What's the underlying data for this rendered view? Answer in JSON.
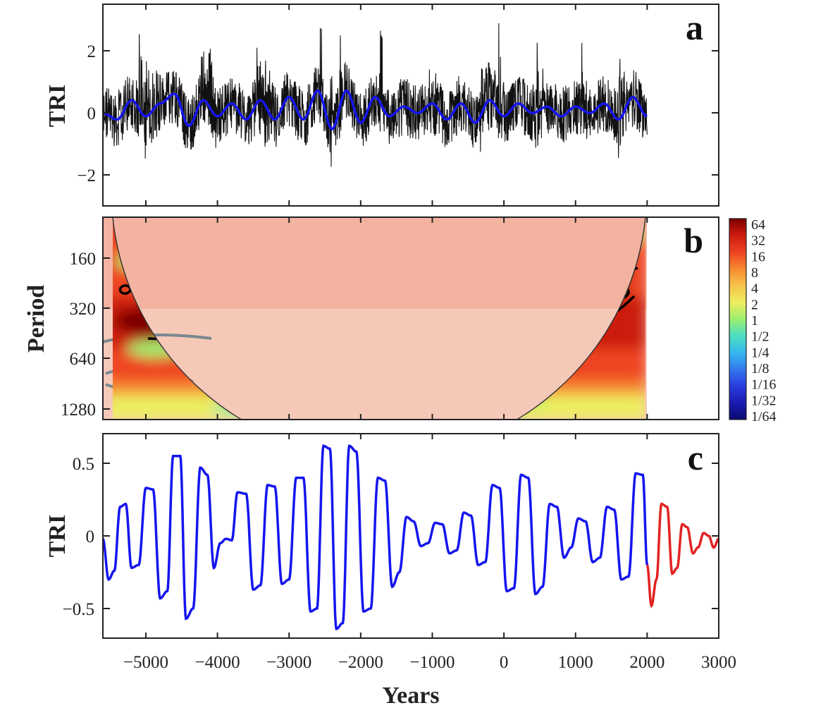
{
  "chart_data": [
    {
      "type": "line",
      "panel": "a",
      "ylabel": "TRI",
      "xlim": [
        -5600,
        3000
      ],
      "ylim": [
        -3,
        3.3
      ],
      "yticks": [
        -2,
        0,
        2
      ],
      "x_data_range": [
        -5600,
        2000
      ],
      "series": [
        {
          "style": "raw tree-ring index, thin black",
          "color": "#111111"
        },
        {
          "style": "filtered oscillation, thick blue",
          "color": "#1515ee",
          "x": [
            -5600,
            -5400,
            -5200,
            -5000,
            -4800,
            -4600,
            -4400,
            -4200,
            -4000,
            -3800,
            -3600,
            -3400,
            -3200,
            -3000,
            -2800,
            -2600,
            -2400,
            -2200,
            -2000,
            -1800,
            -1600,
            -1400,
            -1200,
            -1000,
            -800,
            -600,
            -400,
            -200,
            0,
            200,
            400,
            600,
            800,
            1000,
            1200,
            1400,
            1600,
            1800,
            2000
          ],
          "values": [
            -0.1,
            -0.3,
            0.3,
            -0.2,
            0.2,
            0.5,
            -0.5,
            0.3,
            -0.2,
            0.2,
            -0.3,
            0.3,
            -0.3,
            0.4,
            -0.3,
            0.6,
            -0.6,
            0.6,
            -0.4,
            0.4,
            -0.2,
            0.1,
            -0.1,
            0.2,
            -0.3,
            0.2,
            -0.4,
            0.3,
            -0.2,
            0.2,
            -0.1,
            0.1,
            -0.2,
            0.1,
            -0.1,
            0.2,
            -0.3,
            0.4,
            -0.2
          ]
        }
      ]
    },
    {
      "type": "heatmap",
      "panel": "b",
      "ylabel": "Period",
      "yticks": [
        160,
        320,
        640,
        1280
      ],
      "y_scale": "log2",
      "colorbar_labels": [
        "64",
        "32",
        "16",
        "8",
        "4",
        "2",
        "1",
        "1/2",
        "1/4",
        "1/8",
        "1/16",
        "1/32",
        "1/64"
      ],
      "colormap": [
        "#7a0000",
        "#cc1a10",
        "#ee4422",
        "#f68a30",
        "#f7c24a",
        "#ecee60",
        "#9cee6e",
        "#4ee0c0",
        "#35b6ee",
        "#3378ee",
        "#2a3ee0",
        "#1a1ab0",
        "#0a0a70"
      ],
      "cone_of_influence": true,
      "significance_contours": true
    },
    {
      "type": "line",
      "panel": "c",
      "xlabel": "Years",
      "ylabel": "TRI",
      "xlim": [
        -5600,
        3000
      ],
      "ylim": [
        -0.66,
        0.66
      ],
      "xticks": [
        -5000,
        -4000,
        -3000,
        -2000,
        -1000,
        0,
        1000,
        2000,
        3000
      ],
      "yticks": [
        -0.5,
        0,
        0.5
      ],
      "series": [
        {
          "style": "reconstructed oscillation, blue",
          "color": "#1515ee",
          "x": [
            -5600,
            -5520,
            -5440,
            -5360,
            -5280,
            -5200,
            -5100,
            -5000,
            -4900,
            -4800,
            -4700,
            -4620,
            -4520,
            -4440,
            -4340,
            -4240,
            -4140,
            -4050,
            -3960,
            -3880,
            -3800,
            -3720,
            -3600,
            -3500,
            -3400,
            -3300,
            -3200,
            -3100,
            -3000,
            -2900,
            -2800,
            -2700,
            -2610,
            -2520,
            -2430,
            -2340,
            -2250,
            -2160,
            -2060,
            -1960,
            -1860,
            -1760,
            -1660,
            -1560,
            -1460,
            -1360,
            -1260,
            -1160,
            -1060,
            -960,
            -860,
            -760,
            -660,
            -560,
            -460,
            -360,
            -260,
            -160,
            -60,
            40,
            140,
            240,
            340,
            440,
            540,
            640,
            740,
            840,
            940,
            1040,
            1140,
            1240,
            1340,
            1440,
            1540,
            1640,
            1740,
            1840,
            1940,
            2000
          ],
          "values": [
            -0.02,
            -0.3,
            -0.24,
            0.2,
            0.22,
            -0.22,
            -0.2,
            0.33,
            0.32,
            -0.43,
            -0.38,
            0.55,
            0.55,
            -0.57,
            -0.5,
            0.47,
            0.42,
            -0.22,
            -0.05,
            -0.02,
            -0.03,
            0.3,
            0.29,
            -0.37,
            -0.34,
            0.35,
            0.34,
            -0.33,
            -0.3,
            0.4,
            0.4,
            -0.52,
            -0.5,
            0.62,
            0.6,
            -0.64,
            -0.6,
            0.62,
            0.58,
            -0.52,
            -0.5,
            0.4,
            0.38,
            -0.35,
            -0.25,
            0.13,
            0.1,
            -0.07,
            -0.05,
            0.09,
            0.08,
            -0.12,
            -0.1,
            0.16,
            0.14,
            -0.2,
            -0.18,
            0.35,
            0.33,
            -0.38,
            -0.36,
            0.42,
            0.4,
            -0.4,
            -0.35,
            0.22,
            0.2,
            -0.15,
            -0.08,
            0.12,
            0.1,
            -0.18,
            -0.15,
            0.2,
            0.18,
            -0.3,
            -0.28,
            0.43,
            0.42,
            -0.2
          ]
        },
        {
          "style": "projection, red",
          "color": "#e22222",
          "x": [
            2000,
            2060,
            2130,
            2200,
            2280,
            2350,
            2420,
            2490,
            2560,
            2640,
            2710,
            2790,
            2860,
            2930,
            3000
          ],
          "values": [
            -0.2,
            -0.48,
            -0.3,
            0.22,
            0.2,
            -0.26,
            -0.22,
            0.08,
            0.06,
            -0.12,
            -0.08,
            0.02,
            0.0,
            -0.08,
            -0.02
          ]
        }
      ]
    }
  ],
  "panels": {
    "a": {
      "letter": "a",
      "ylabel": "TRI",
      "yticks": [
        "2",
        "0",
        "−2"
      ]
    },
    "b": {
      "letter": "b",
      "ylabel": "Period",
      "yticks": [
        "160",
        "320",
        "640",
        "1280"
      ]
    },
    "c": {
      "letter": "c",
      "ylabel": "TRI",
      "yticks": [
        "0.5",
        "0",
        "−0.5"
      ],
      "xlabel": "Years",
      "xticks": [
        "−5000",
        "−4000",
        "−3000",
        "−2000",
        "−1000",
        "0",
        "1000",
        "2000",
        "3000"
      ]
    }
  }
}
